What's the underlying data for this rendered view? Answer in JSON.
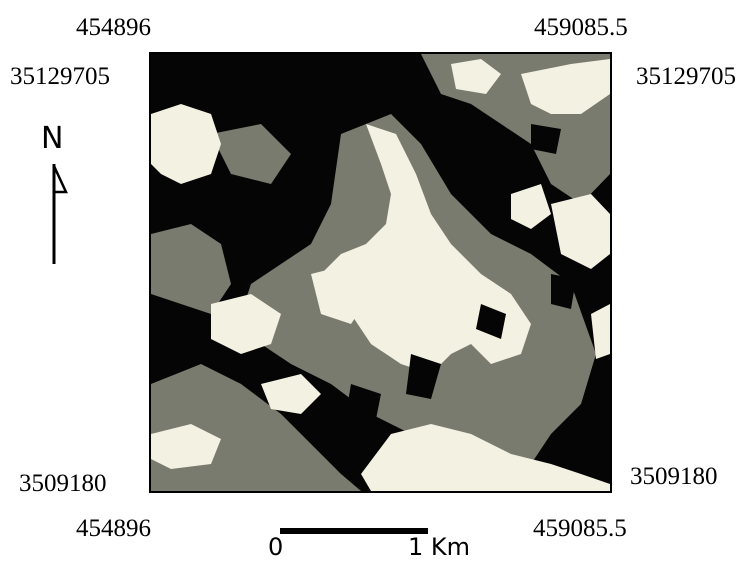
{
  "coordinates": {
    "top_left_x": "454896",
    "top_right_x": "459085.5",
    "top_left_y": "35129705",
    "top_right_y": "35129705",
    "bottom_left_y": "3509180",
    "bottom_right_y": "3509180",
    "bottom_left_x": "454896",
    "bottom_right_x": "459085.5"
  },
  "north_arrow": {
    "label": "N",
    "icon": "north-arrow-icon"
  },
  "scale_bar": {
    "start_label": "0",
    "end_label": "1 Km"
  },
  "map": {
    "classes": [
      {
        "name": "dark",
        "color": "#050505"
      },
      {
        "name": "gray",
        "color": "#7a7b6f"
      },
      {
        "name": "light",
        "color": "#f3f1e2"
      }
    ]
  }
}
